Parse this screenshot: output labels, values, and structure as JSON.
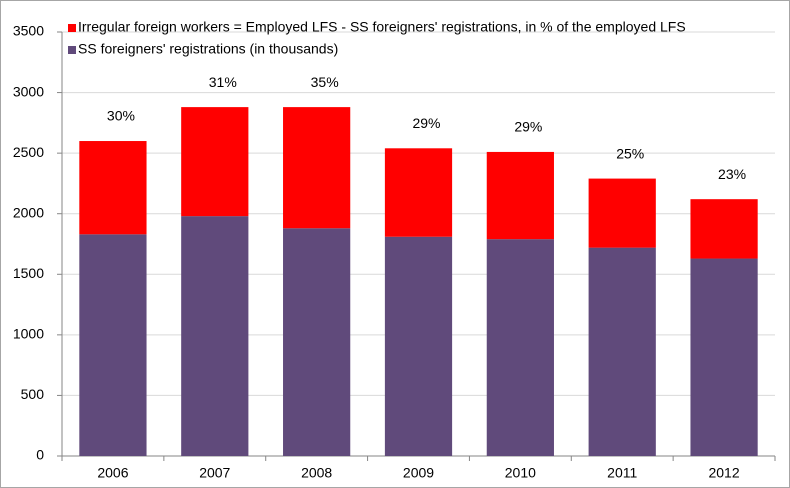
{
  "chart_data": {
    "type": "stacked_bar",
    "categories": [
      "2006",
      "2007",
      "2008",
      "2009",
      "2010",
      "2011",
      "2012"
    ],
    "series": [
      {
        "name": "SS foreigners' registrations (in thousands)",
        "color": "#604a7b",
        "values": [
          1830,
          1980,
          1880,
          1810,
          1790,
          1720,
          1630
        ]
      },
      {
        "name": "Irregular foreign workers = Employed LFS - SS foreigners' registrations, in % of the employed LFS",
        "color": "#ff0000",
        "values": [
          770,
          900,
          1000,
          730,
          720,
          570,
          490
        ],
        "share_values": [
          30,
          31,
          35,
          29,
          29,
          25,
          23
        ],
        "share_labels": [
          "30%",
          "31%",
          "35%",
          "29%",
          "29%",
          "25%",
          "23%"
        ]
      }
    ],
    "ylim": [
      0,
      3500
    ],
    "yticks": [
      0,
      500,
      1000,
      1500,
      2000,
      2500,
      3000,
      3500
    ],
    "grid": true
  }
}
